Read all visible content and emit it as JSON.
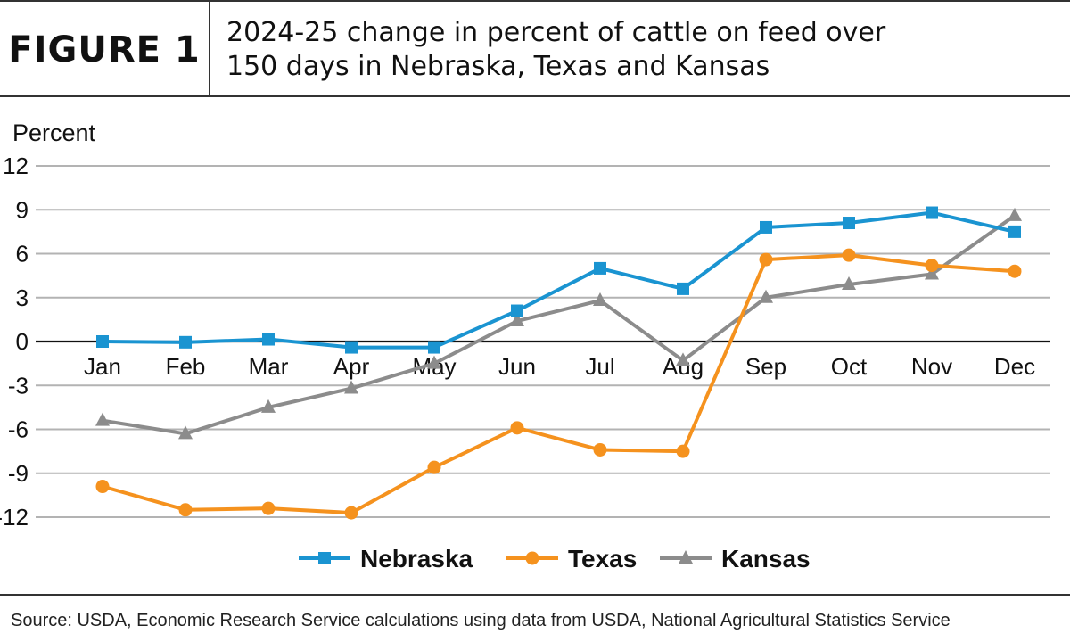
{
  "header": {
    "figure_label": "FIGURE 1",
    "title_line1": "2024-25 change in percent of cattle on feed over",
    "title_line2": "150 days in Nebraska, Texas and Kansas"
  },
  "source": "Source: USDA, Economic Research Service calculations using data from USDA, National Agricultural Statistics Service",
  "chart_data": {
    "type": "line",
    "title": "2024-25 change in percent of cattle on feed over 150 days in Nebraska, Texas and Kansas",
    "ylabel": "Percent",
    "xlabel": "",
    "ylim": [
      -12,
      12
    ],
    "yticks": [
      12,
      9,
      6,
      3,
      0,
      -3,
      -6,
      -9,
      -12
    ],
    "ytick_labels": [
      "12",
      "9",
      "6",
      "3",
      "0",
      "-3",
      "-6",
      "-9",
      "-12"
    ],
    "grid": true,
    "legend_position": "bottom",
    "categories": [
      "Jan",
      "Feb",
      "Mar",
      "Apr",
      "May",
      "Jun",
      "Jul",
      "Aug",
      "Sep",
      "Oct",
      "Nov",
      "Dec"
    ],
    "series": [
      {
        "name": "Nebraska",
        "color": "#1a94d1",
        "marker": "square",
        "values": [
          0.0,
          -0.05,
          0.15,
          -0.4,
          -0.4,
          2.1,
          5.0,
          3.6,
          7.8,
          8.1,
          8.8,
          7.5
        ]
      },
      {
        "name": "Texas",
        "color": "#f5921e",
        "marker": "circle",
        "values": [
          -9.9,
          -11.5,
          -11.4,
          -11.7,
          -8.6,
          -5.9,
          -7.4,
          -7.5,
          5.6,
          5.9,
          5.2,
          4.8
        ]
      },
      {
        "name": "Kansas",
        "color": "#8c8c8c",
        "marker": "triangle",
        "values": [
          -5.4,
          -6.3,
          -4.5,
          -3.2,
          -1.5,
          1.4,
          2.8,
          -1.3,
          3.0,
          3.9,
          4.6,
          8.6
        ]
      }
    ]
  }
}
